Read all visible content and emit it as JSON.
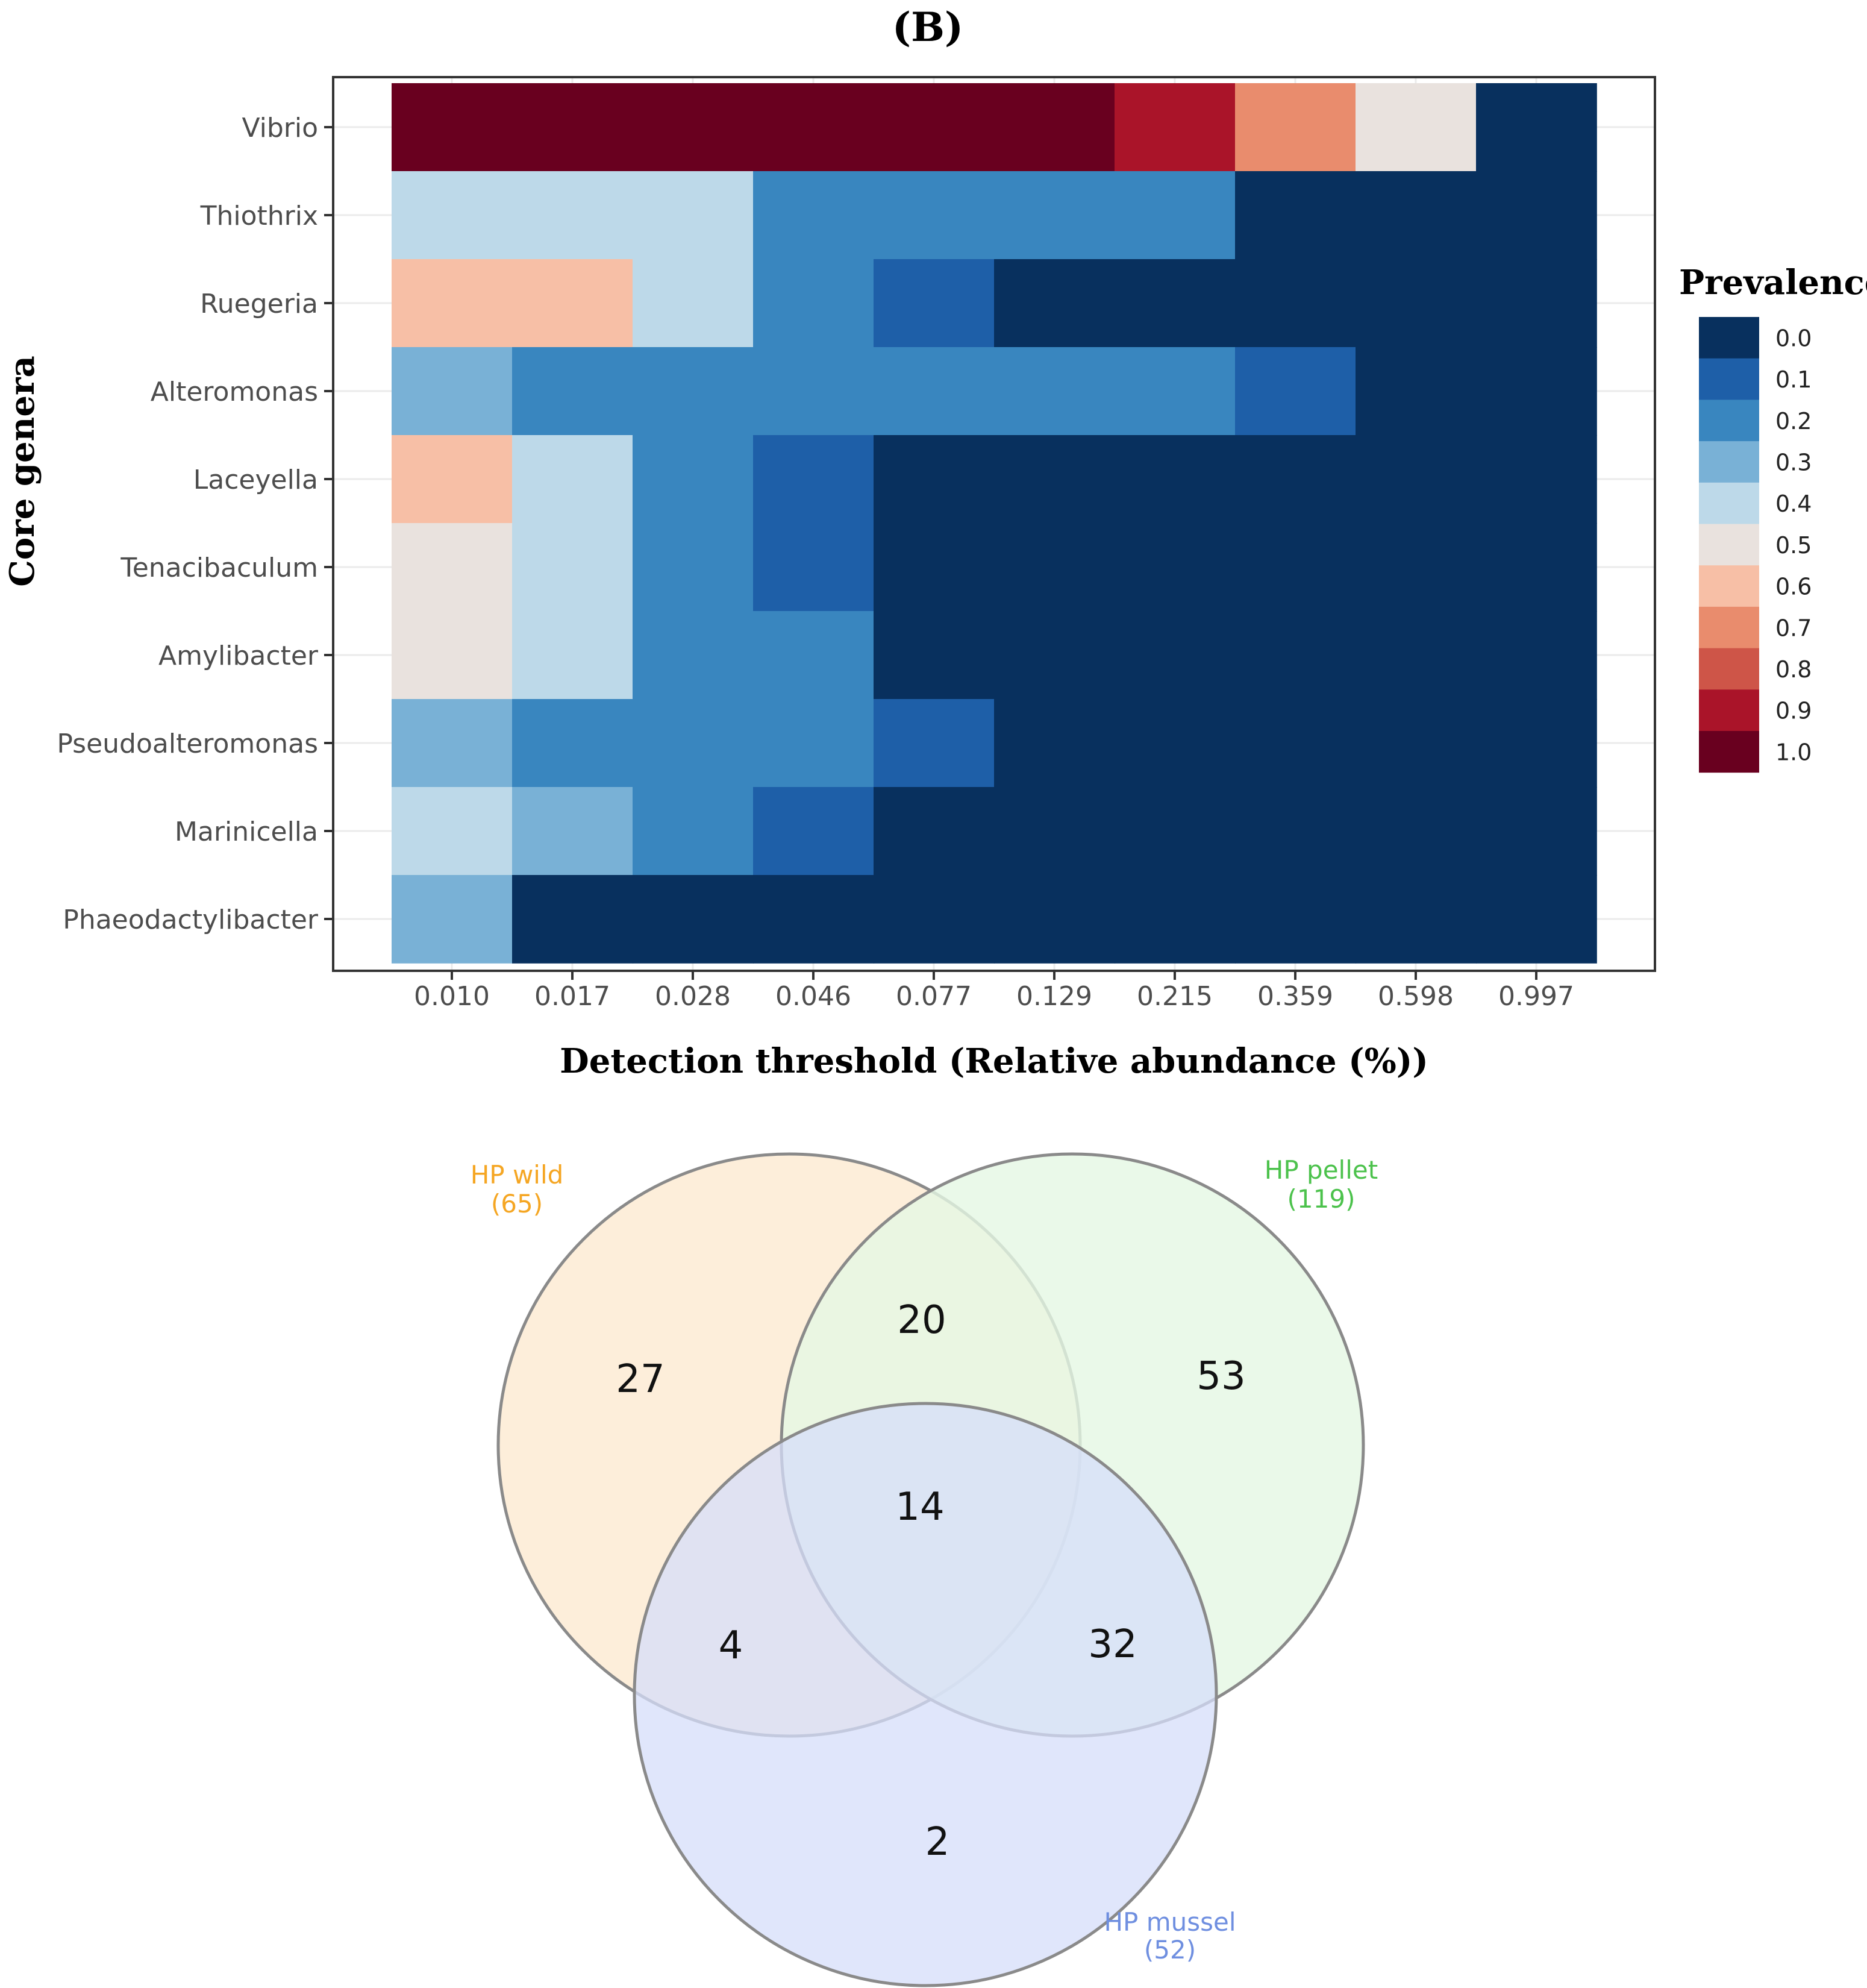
{
  "panel_label": "(B)",
  "chart_data": [
    {
      "type": "heatmap",
      "title": "",
      "xlabel": "Detection threshold (Relative abundance (%))",
      "ylabel": "Core genera",
      "x": [
        "0.010",
        "0.017",
        "0.028",
        "0.046",
        "0.077",
        "0.129",
        "0.215",
        "0.359",
        "0.598",
        "0.997"
      ],
      "y": [
        "Vibrio",
        "Thiothrix",
        "Ruegeria",
        "Alteromonas",
        "Laceyella",
        "Tenacibaculum",
        "Amylibacter",
        "Pseudoalteromonas",
        "Marinicella",
        "Phaeodactylibacter"
      ],
      "values": [
        [
          1.0,
          1.0,
          1.0,
          1.0,
          1.0,
          1.0,
          0.9,
          0.7,
          0.5,
          0.0
        ],
        [
          0.35,
          0.35,
          0.35,
          0.2,
          0.2,
          0.2,
          0.15,
          0.0,
          0.0,
          0.0
        ],
        [
          0.55,
          0.55,
          0.4,
          0.15,
          0.1,
          0.0,
          0.0,
          0.0,
          0.0,
          0.0
        ],
        [
          0.25,
          0.2,
          0.2,
          0.2,
          0.2,
          0.15,
          0.15,
          0.1,
          0.0,
          0.0
        ],
        [
          0.55,
          0.4,
          0.2,
          0.1,
          0.0,
          0.0,
          0.0,
          0.0,
          0.0,
          0.0
        ],
        [
          0.5,
          0.4,
          0.2,
          0.1,
          0.0,
          0.0,
          0.0,
          0.0,
          0.0,
          0.0
        ],
        [
          0.5,
          0.35,
          0.15,
          0.15,
          0.0,
          0.0,
          0.0,
          0.0,
          0.0,
          0.0
        ],
        [
          0.25,
          0.2,
          0.2,
          0.2,
          0.1,
          0.0,
          0.0,
          0.0,
          0.0,
          0.0
        ],
        [
          0.35,
          0.25,
          0.15,
          0.1,
          0.0,
          0.0,
          0.0,
          0.0,
          0.0,
          0.0
        ],
        [
          0.25,
          0.0,
          0.0,
          0.0,
          0.0,
          0.0,
          0.0,
          0.0,
          0.0,
          0.0
        ]
      ],
      "legend": {
        "title": "Prevalence",
        "position": "right",
        "ticks": [
          "0.0",
          "0.1",
          "0.2",
          "0.3",
          "0.4",
          "0.5",
          "0.6",
          "0.7",
          "0.8",
          "0.9",
          "1.0"
        ],
        "colors": [
          "#08305E",
          "#1E5FA8",
          "#3986BF",
          "#79B1D6",
          "#BDD9E9",
          "#E9E2DE",
          "#F7BFA6",
          "#E98C6D",
          "#CE5548",
          "#AA1429",
          "#69001F"
        ]
      },
      "grid": true
    },
    {
      "type": "venn",
      "sets": [
        {
          "name": "HP wild",
          "size": 65,
          "size_label": "(65)",
          "color": "#F5A623"
        },
        {
          "name": "HP pellet",
          "size": 119,
          "size_label": "(119)",
          "color": "#4CC24C"
        },
        {
          "name": "HP mussel",
          "size": 52,
          "size_label": "(52)",
          "color": "#6F8FE0"
        }
      ],
      "regions": {
        "wild_only": 27,
        "pellet_only": 53,
        "mussel_only": 2,
        "wild_pellet": 20,
        "wild_mussel": 4,
        "pellet_mussel": 32,
        "all_three": 14
      },
      "fills": {
        "wild": "#FDEBD4",
        "pellet": "#E5F7E4",
        "mussel": "#DDE4FB"
      }
    }
  ]
}
